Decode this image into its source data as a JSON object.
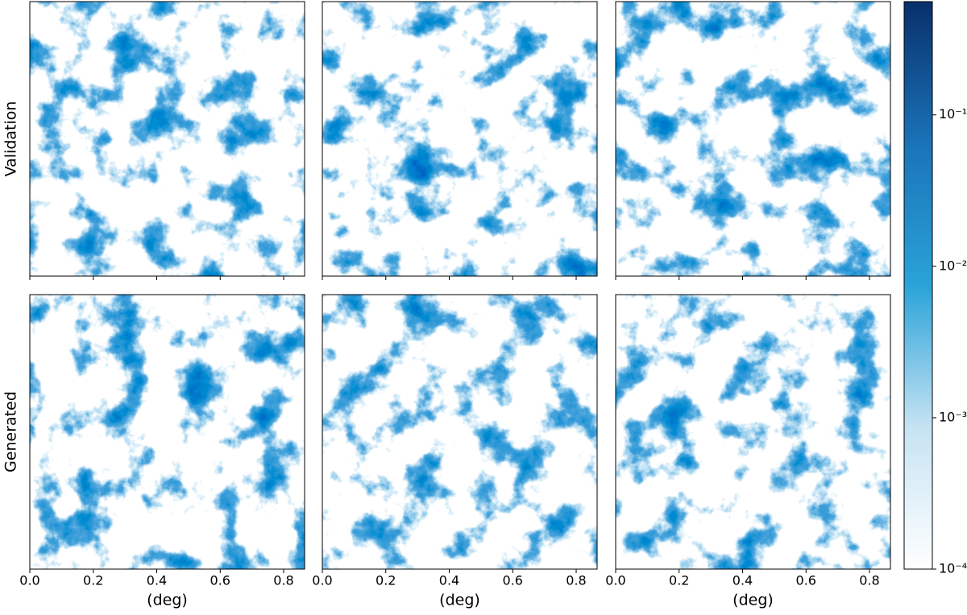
{
  "chart_data": {
    "type": "image",
    "rows": [
      "Validation",
      "Generated"
    ],
    "columns": 3,
    "xlabel": "(deg)",
    "xlim": [
      0,
      0.866
    ],
    "xticks": [
      {
        "value": 0,
        "label": "0.0"
      },
      0.2,
      0.4,
      0.6,
      0.8
    ],
    "colorbar": {
      "scale": "log",
      "clim": [
        0.0001,
        0.56
      ],
      "ticks": [
        {
          "value": 0.0001,
          "label": "10⁻⁴"
        },
        {
          "value": 0.001,
          "label": "10⁻³"
        },
        {
          "value": 0.01,
          "label": "10⁻²"
        },
        {
          "value": 0.1,
          "label": "10⁻¹"
        }
      ],
      "colors": [
        "#ffffff",
        "#c6e3f3",
        "#2aa3d8",
        "#1a73b8",
        "#08306b"
      ]
    }
  }
}
